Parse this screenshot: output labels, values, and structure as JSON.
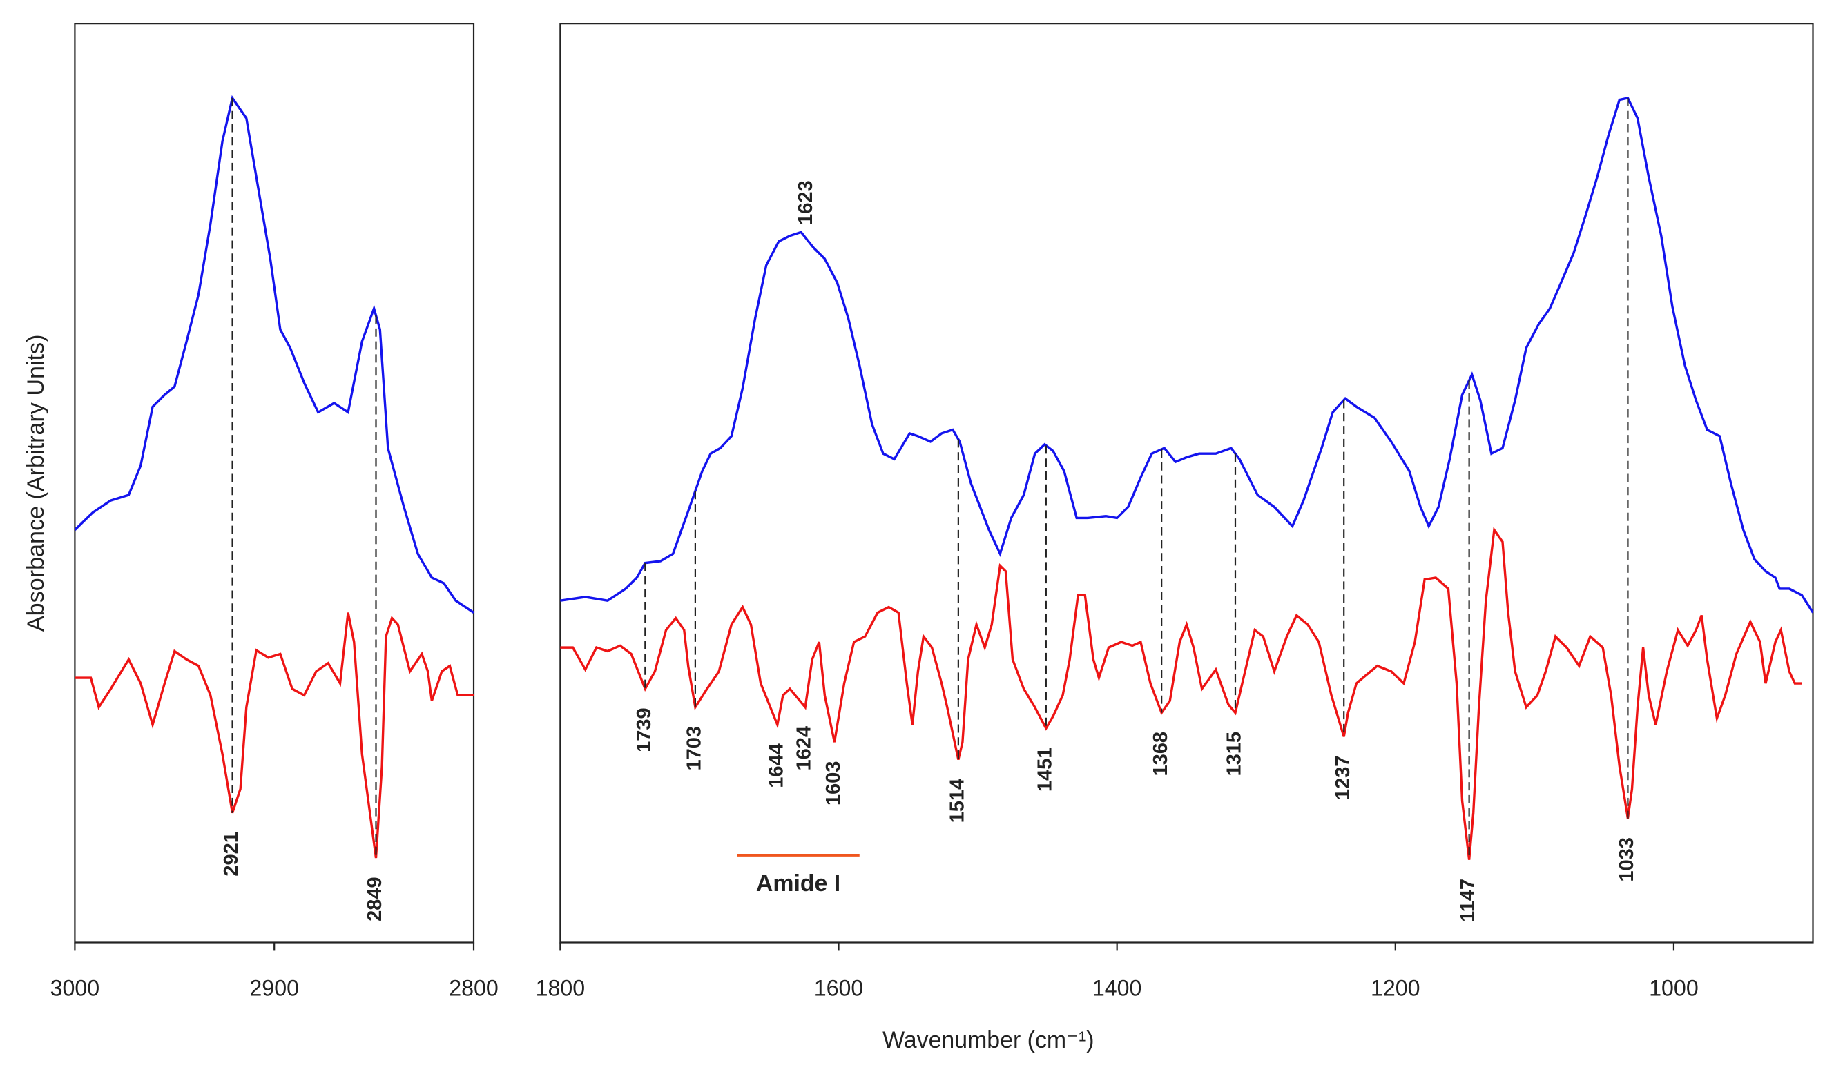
{
  "chart_data": [
    {
      "type": "line",
      "xlim": [
        3000,
        2800
      ],
      "xticks": [
        3000,
        2900,
        2800
      ],
      "ylim": [
        0,
        100
      ],
      "ylabel": "Absorbance (Arbitrary Units)",
      "series": [
        {
          "color": "#1414ee",
          "x": [
            3000,
            2991,
            2982,
            2973,
            2967,
            2961,
            2955,
            2950,
            2944,
            2938,
            2932,
            2926,
            2921,
            2914,
            2909,
            2902,
            2897,
            2892,
            2885,
            2878,
            2870,
            2863,
            2856,
            2850,
            2847,
            2843,
            2835,
            2828,
            2821,
            2815,
            2809,
            2800
          ],
          "values": [
            44.9,
            46.8,
            48.1,
            48.7,
            51.9,
            58.3,
            59.6,
            60.5,
            65.4,
            70.5,
            78.2,
            87.2,
            91.9,
            89.7,
            83.3,
            74.4,
            66.7,
            64.7,
            60.9,
            57.7,
            58.7,
            57.7,
            65.4,
            69,
            66.7,
            53.8,
            47.4,
            42.3,
            39.7,
            39.1,
            37.2,
            35.9
          ]
        },
        {
          "color": "#ee1414",
          "x": [
            3000,
            2992,
            2988,
            2982,
            2973,
            2967,
            2961,
            2955,
            2950,
            2944,
            2938,
            2932,
            2926,
            2921,
            2917,
            2914,
            2909,
            2903,
            2897,
            2891,
            2885,
            2879,
            2873,
            2867,
            2863,
            2860,
            2856,
            2849,
            2846,
            2844,
            2841,
            2838,
            2832,
            2826,
            2823,
            2821,
            2816,
            2812,
            2808,
            2800
          ],
          "values": [
            28.8,
            28.8,
            25.6,
            27.6,
            30.8,
            28.2,
            23.7,
            28.2,
            31.7,
            30.8,
            30.1,
            26.9,
            20.5,
            14.1,
            16.7,
            25.6,
            31.8,
            31,
            31.4,
            27.6,
            26.9,
            29.5,
            30.4,
            28.2,
            35.9,
            32.7,
            20.5,
            9.2,
            19.2,
            33.3,
            35.3,
            34.6,
            29.5,
            31.4,
            29.5,
            26.3,
            29.5,
            30.1,
            26.9,
            26.9
          ]
        }
      ],
      "annotations": [
        {
          "text": "2921",
          "x": 2921,
          "series": 1,
          "color": "#e8141c",
          "dashed": true
        },
        {
          "text": "2849",
          "x": 2849,
          "series": 1,
          "color": "#e8141c",
          "dashed": true
        }
      ]
    },
    {
      "type": "line",
      "xlim": [
        1800,
        900
      ],
      "xticks": [
        1800,
        1600,
        1400,
        1200,
        1000
      ],
      "ylim": [
        0,
        100
      ],
      "xlabel": "Wavenumber (cm⁻¹)",
      "series": [
        {
          "color": "#1414ee",
          "x": [
            1800,
            1782,
            1766,
            1753,
            1745,
            1739,
            1728,
            1719,
            1707,
            1698,
            1692,
            1685,
            1677,
            1669,
            1660,
            1652,
            1643,
            1635,
            1627,
            1618,
            1610,
            1601,
            1593,
            1585,
            1576,
            1568,
            1560,
            1549,
            1543,
            1534,
            1526,
            1518,
            1513,
            1505,
            1492,
            1484,
            1476,
            1467,
            1459,
            1452,
            1446,
            1438,
            1429,
            1421,
            1408,
            1400,
            1392,
            1383,
            1375,
            1366,
            1358,
            1350,
            1341,
            1329,
            1318,
            1312,
            1299,
            1287,
            1274,
            1266,
            1253,
            1245,
            1236,
            1228,
            1215,
            1203,
            1190,
            1182,
            1176,
            1169,
            1161,
            1152,
            1145,
            1139,
            1131,
            1123,
            1114,
            1106,
            1097,
            1089,
            1081,
            1072,
            1064,
            1055,
            1047,
            1039,
            1033,
            1026,
            1018,
            1009,
            1001,
            992,
            984,
            976,
            967,
            959,
            950,
            942,
            934,
            927,
            924,
            917,
            908,
            900
          ],
          "values": [
            37.2,
            37.6,
            37.2,
            38.5,
            39.7,
            41.3,
            41.5,
            42.3,
            47.4,
            51.3,
            53.2,
            53.8,
            55.1,
            60.3,
            67.9,
            73.7,
            76.3,
            76.9,
            77.3,
            75.6,
            74.4,
            71.8,
            67.9,
            62.8,
            56.4,
            53.2,
            52.6,
            55.4,
            55.1,
            54.5,
            55.4,
            55.8,
            54.5,
            50,
            44.9,
            42.3,
            46.2,
            48.7,
            53.2,
            54.2,
            53.5,
            51.3,
            46.2,
            46.2,
            46.4,
            46.2,
            47.4,
            50.6,
            53.2,
            53.8,
            52.3,
            52.8,
            53.2,
            53.2,
            53.8,
            52.6,
            48.7,
            47.4,
            45.3,
            48.1,
            53.8,
            57.7,
            59.2,
            58.3,
            57.1,
            54.5,
            51.3,
            47.4,
            45.3,
            47.4,
            52.6,
            59.6,
            61.8,
            59,
            53.2,
            53.8,
            59,
            64.7,
            67.3,
            69,
            71.8,
            75,
            78.8,
            83.3,
            87.8,
            91.7,
            91.9,
            89.7,
            83.3,
            76.9,
            69.2,
            62.8,
            59,
            55.8,
            55.1,
            50,
            44.9,
            41.7,
            40.4,
            39.7,
            38.5,
            38.5,
            37.8,
            35.9
          ]
        },
        {
          "color": "#ee1414",
          "x": [
            1800,
            1791,
            1782,
            1774,
            1766,
            1757,
            1749,
            1739,
            1732,
            1724,
            1717,
            1711,
            1708,
            1703,
            1695,
            1686,
            1677,
            1669,
            1663,
            1656,
            1644,
            1640,
            1635,
            1624,
            1619,
            1614,
            1610,
            1603,
            1596,
            1589,
            1581,
            1572,
            1564,
            1557,
            1551,
            1547,
            1543,
            1539,
            1533,
            1526,
            1522,
            1514,
            1511,
            1507,
            1501,
            1495,
            1490,
            1484,
            1480,
            1475,
            1467,
            1459,
            1451,
            1446,
            1439,
            1434,
            1428,
            1423,
            1417,
            1413,
            1406,
            1397,
            1389,
            1383,
            1376,
            1368,
            1362,
            1355,
            1350,
            1345,
            1339,
            1329,
            1320,
            1315,
            1308,
            1301,
            1295,
            1287,
            1278,
            1271,
            1263,
            1255,
            1246,
            1237,
            1234,
            1228,
            1221,
            1213,
            1203,
            1194,
            1186,
            1179,
            1171,
            1162,
            1156,
            1152,
            1147,
            1144,
            1140,
            1135,
            1129,
            1123,
            1119,
            1114,
            1106,
            1098,
            1092,
            1085,
            1077,
            1068,
            1060,
            1051,
            1045,
            1039,
            1033,
            1030,
            1026,
            1022,
            1018,
            1013,
            1005,
            997,
            990,
            984,
            980,
            976,
            969,
            963,
            955,
            945,
            938,
            934,
            927,
            923,
            917,
            913,
            908
          ],
          "values": [
            32.1,
            32.1,
            29.7,
            32.1,
            31.7,
            32.3,
            31.4,
            27.6,
            29.5,
            34,
            35.3,
            34,
            30,
            25.6,
            27.5,
            29.5,
            34.6,
            36.5,
            34.6,
            28.2,
            23.7,
            26.9,
            27.6,
            25.6,
            30.8,
            32.7,
            26.9,
            21.8,
            28.2,
            32.7,
            33.3,
            35.9,
            36.5,
            35.9,
            28.2,
            23.7,
            29.5,
            33.3,
            32.1,
            28.2,
            25.6,
            19.9,
            21.8,
            30.8,
            34.6,
            32.1,
            34.6,
            41,
            40.4,
            30.8,
            27.6,
            25.6,
            23.3,
            24.6,
            26.9,
            30.8,
            37.8,
            37.8,
            30.8,
            28.8,
            32.1,
            32.7,
            32.3,
            32.7,
            28.2,
            25,
            26.3,
            32.7,
            34.6,
            32.1,
            27.6,
            29.7,
            25.9,
            25,
            29.5,
            34,
            33.3,
            29.5,
            33.3,
            35.6,
            34.6,
            32.7,
            26.9,
            22.4,
            25,
            28.2,
            29.1,
            30.1,
            29.5,
            28.2,
            32.7,
            39.5,
            39.7,
            38.5,
            28.2,
            15.4,
            9,
            14.1,
            25.6,
            37.2,
            44.9,
            43.6,
            35.9,
            29.5,
            25.6,
            26.9,
            29.5,
            33.3,
            32.1,
            30.1,
            33.3,
            32.1,
            26.9,
            19.2,
            13.5,
            16.7,
            25.6,
            32.1,
            26.9,
            23.7,
            29.5,
            34,
            32.3,
            34,
            35.6,
            30.8,
            24.4,
            26.9,
            31.4,
            34.9,
            32.7,
            28.2,
            32.7,
            34,
            29.5,
            28.2,
            28.2
          ]
        }
      ],
      "annotations": [
        {
          "text": "1623",
          "x": 1623,
          "series": 0,
          "color": "#2233bb"
        },
        {
          "text": "1739",
          "x": 1739,
          "series": 1,
          "color": "#e8141c",
          "dashed": true
        },
        {
          "text": "1703",
          "x": 1703,
          "series": 1,
          "color": "#e8141c",
          "dashed": true
        },
        {
          "text": "1644",
          "x": 1644,
          "series": 1,
          "color": "#e8141c"
        },
        {
          "text": "1624",
          "x": 1624,
          "series": 1,
          "color": "#e8141c"
        },
        {
          "text": "1603",
          "x": 1603,
          "series": 1,
          "color": "#e8141c"
        },
        {
          "text": "1514",
          "x": 1514,
          "series": 1,
          "color": "#e8141c",
          "dashed": true
        },
        {
          "text": "1451",
          "x": 1451,
          "series": 1,
          "color": "#f0561e",
          "dashed": true
        },
        {
          "text": "1368",
          "x": 1368,
          "series": 1,
          "color": "#f0561e",
          "dashed": true
        },
        {
          "text": "1315",
          "x": 1315,
          "series": 1,
          "color": "#f0561e",
          "dashed": true
        },
        {
          "text": "1237",
          "x": 1237,
          "series": 1,
          "color": "#f0561e",
          "dashed": true
        },
        {
          "text": "1147",
          "x": 1147,
          "series": 1,
          "color": "#f0561e",
          "dashed": true
        },
        {
          "text": "1033",
          "x": 1033,
          "series": 1,
          "color": "#f0561e",
          "dashed": true
        }
      ],
      "brackets": [
        {
          "text": "Amide I",
          "xrange": [
            1673,
            1585
          ],
          "color": "#f0561e"
        }
      ]
    }
  ]
}
